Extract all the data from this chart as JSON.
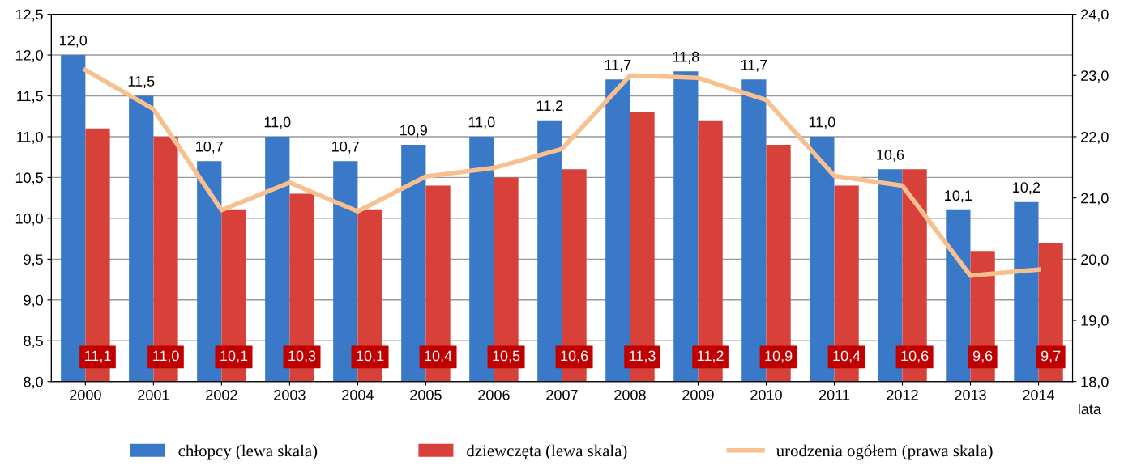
{
  "chart_data": {
    "type": "bar",
    "xlabel": "lata",
    "categories": [
      "2000",
      "2001",
      "2002",
      "2003",
      "2004",
      "2005",
      "2006",
      "2007",
      "2008",
      "2009",
      "2010",
      "2011",
      "2012",
      "2013",
      "2014"
    ],
    "series": [
      {
        "name": "chłopcy (lewa skala)",
        "color": "#3a78c8",
        "values": [
          12.0,
          11.5,
          10.7,
          11.0,
          10.7,
          10.9,
          11.0,
          11.2,
          11.7,
          11.8,
          11.7,
          11.0,
          10.6,
          10.1,
          10.2
        ],
        "value_labels": [
          "12,0",
          "11,5",
          "10,7",
          "11,0",
          "10,7",
          "10,9",
          "11,0",
          "11,2",
          "11,7",
          "11,8",
          "11,7",
          "11,0",
          "10,6",
          "10,1",
          "10,2"
        ]
      },
      {
        "name": "dziewczęta (lewa skala)",
        "color": "#d8403a",
        "values": [
          11.1,
          11.0,
          10.1,
          10.3,
          10.1,
          10.4,
          10.5,
          10.6,
          11.3,
          11.2,
          10.9,
          10.4,
          10.6,
          9.6,
          9.7
        ],
        "value_labels": [
          "11,1",
          "11,0",
          "10,1",
          "10,3",
          "10,1",
          "10,4",
          "10,5",
          "10,6",
          "11,3",
          "11,2",
          "10,9",
          "10,4",
          "10,6",
          "9,6",
          "9,7"
        ]
      },
      {
        "name": "urodzenia ogółem (prawa skala)",
        "type": "line",
        "axis": "y2",
        "color": "#f9c08f",
        "values": [
          23.09,
          22.45,
          20.8,
          21.25,
          20.78,
          21.35,
          21.49,
          21.8,
          23.0,
          22.96,
          22.6,
          21.36,
          21.2,
          19.73,
          19.83
        ]
      }
    ],
    "ylim": [
      8,
      12.5
    ],
    "yticks": [
      {
        "value": 8,
        "label": "8,0"
      },
      {
        "value": 8.5,
        "label": "8,5"
      },
      {
        "value": 9,
        "label": "9,0"
      },
      {
        "value": 9.5,
        "label": "9,5"
      },
      {
        "value": 10,
        "label": "10,0"
      },
      {
        "value": 10.5,
        "label": "10,5"
      },
      {
        "value": 11,
        "label": "11,0"
      },
      {
        "value": 11.5,
        "label": "11,5"
      },
      {
        "value": 12,
        "label": "12,0"
      },
      {
        "value": 12.5,
        "label": "12,5"
      }
    ],
    "y2lim": [
      18,
      24
    ],
    "y2ticks": [
      {
        "value": 18,
        "label": "18,0"
      },
      {
        "value": 19,
        "label": "19,0"
      },
      {
        "value": 20,
        "label": "20,0"
      },
      {
        "value": 21,
        "label": "21,0"
      },
      {
        "value": 22,
        "label": "22,0"
      },
      {
        "value": 23,
        "label": "23,0"
      },
      {
        "value": 24,
        "label": "24,0"
      }
    ],
    "grid": "y",
    "legend": "bottom"
  }
}
